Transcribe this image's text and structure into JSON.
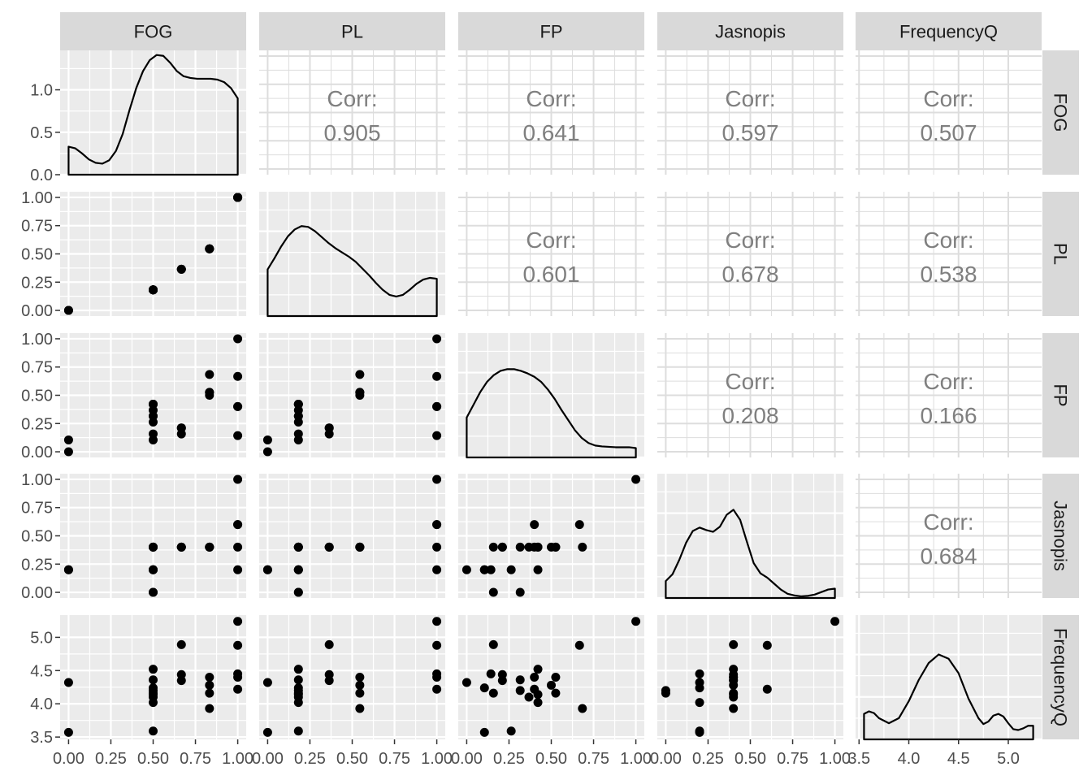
{
  "chart_data": {
    "type": "scatter",
    "title": "",
    "variables": [
      "FOG",
      "PL",
      "FP",
      "Jasnopis",
      "FrequencyQ"
    ],
    "corr_label": "Corr:",
    "correlations": [
      {
        "row": "FOG",
        "col": "PL",
        "value": "0.905"
      },
      {
        "row": "FOG",
        "col": "FP",
        "value": "0.641"
      },
      {
        "row": "FOG",
        "col": "Jasnopis",
        "value": "0.597"
      },
      {
        "row": "FOG",
        "col": "FrequencyQ",
        "value": "0.507"
      },
      {
        "row": "PL",
        "col": "FP",
        "value": "0.601"
      },
      {
        "row": "PL",
        "col": "Jasnopis",
        "value": "0.678"
      },
      {
        "row": "PL",
        "col": "FrequencyQ",
        "value": "0.538"
      },
      {
        "row": "FP",
        "col": "Jasnopis",
        "value": "0.208"
      },
      {
        "row": "FP",
        "col": "FrequencyQ",
        "value": "0.166"
      },
      {
        "row": "Jasnopis",
        "col": "FrequencyQ",
        "value": "0.684"
      }
    ],
    "axes": {
      "FOG": {
        "range": [
          0,
          1
        ],
        "ticks": [
          "0.00",
          "0.25",
          "0.50",
          "0.75",
          "1.00"
        ]
      },
      "PL": {
        "range": [
          0,
          1
        ],
        "ticks": [
          "0.00",
          "0.25",
          "0.50",
          "0.75",
          "1.00"
        ]
      },
      "FP": {
        "range": [
          0,
          1
        ],
        "ticks": [
          "0.00",
          "0.25",
          "0.50",
          "0.75",
          "1.00"
        ]
      },
      "Jasnopis": {
        "range": [
          0,
          1
        ],
        "ticks": [
          "0.00",
          "0.25",
          "0.50",
          "0.75",
          "1.00"
        ]
      },
      "FrequencyQ": {
        "range": [
          3.55,
          5.25
        ],
        "ticks": [
          "3.5",
          "4.0",
          "4.5",
          "5.0"
        ]
      }
    },
    "density_y_ticks": [
      "0.0",
      "0.5",
      "1.0"
    ],
    "density_y_max": 1.45,
    "observations": {
      "FOG": [
        0,
        0,
        0.5,
        0.5,
        0.5,
        0.5,
        0.5,
        0.5,
        0.5,
        0.5,
        0.5,
        0.667,
        0.667,
        0.667,
        0.833,
        0.833,
        0.833,
        0.833,
        1,
        1,
        1,
        1,
        1
      ],
      "PL": [
        0,
        0,
        0.182,
        0.182,
        0.182,
        0.182,
        0.182,
        0.182,
        0.182,
        0.182,
        0.182,
        0.364,
        0.364,
        0.364,
        0.545,
        0.545,
        0.545,
        0.545,
        1,
        1,
        1,
        1,
        1
      ],
      "FP": [
        0,
        0.105,
        0.263,
        0.421,
        0.316,
        0.105,
        0.158,
        0.368,
        0.421,
        0.316,
        0.421,
        0.158,
        0.211,
        0.211,
        0.526,
        0.5,
        0.526,
        0.684,
        1,
        0.667,
        0.143,
        0.4,
        0.4
      ],
      "Jasnopis": [
        0.2,
        0.2,
        0.2,
        0.4,
        0.4,
        0.2,
        0.0,
        0.4,
        0.2,
        0.0,
        0.4,
        0.4,
        0.4,
        0.4,
        0.4,
        0.4,
        0.4,
        0.4,
        1,
        0.6,
        0.2,
        0.6,
        0.4
      ],
      "FrequencyQ": [
        4.32,
        3.57,
        3.59,
        4.52,
        4.36,
        4.24,
        4.16,
        4.1,
        4.02,
        4.2,
        4.14,
        4.89,
        4.44,
        4.35,
        4.4,
        4.28,
        4.16,
        3.93,
        5.24,
        4.88,
        4.45,
        4.22,
        4.4
      ]
    },
    "densities": {
      "FOG": [
        [
          0,
          0.33
        ],
        [
          0.04,
          0.31
        ],
        [
          0.08,
          0.25
        ],
        [
          0.12,
          0.18
        ],
        [
          0.16,
          0.14
        ],
        [
          0.2,
          0.13
        ],
        [
          0.24,
          0.17
        ],
        [
          0.28,
          0.28
        ],
        [
          0.32,
          0.48
        ],
        [
          0.36,
          0.76
        ],
        [
          0.4,
          1.02
        ],
        [
          0.44,
          1.22
        ],
        [
          0.48,
          1.35
        ],
        [
          0.52,
          1.41
        ],
        [
          0.56,
          1.4
        ],
        [
          0.6,
          1.32
        ],
        [
          0.64,
          1.22
        ],
        [
          0.68,
          1.16
        ],
        [
          0.72,
          1.14
        ],
        [
          0.76,
          1.13
        ],
        [
          0.8,
          1.13
        ],
        [
          0.84,
          1.13
        ],
        [
          0.88,
          1.12
        ],
        [
          0.92,
          1.09
        ],
        [
          0.96,
          1.02
        ],
        [
          1,
          0.9
        ]
      ],
      "PL": [
        [
          0,
          0.55
        ],
        [
          0.04,
          0.68
        ],
        [
          0.08,
          0.82
        ],
        [
          0.12,
          0.94
        ],
        [
          0.16,
          1.02
        ],
        [
          0.2,
          1.06
        ],
        [
          0.24,
          1.05
        ],
        [
          0.28,
          1.0
        ],
        [
          0.32,
          0.93
        ],
        [
          0.36,
          0.86
        ],
        [
          0.4,
          0.8
        ],
        [
          0.44,
          0.75
        ],
        [
          0.48,
          0.7
        ],
        [
          0.52,
          0.64
        ],
        [
          0.56,
          0.56
        ],
        [
          0.6,
          0.48
        ],
        [
          0.64,
          0.39
        ],
        [
          0.68,
          0.31
        ],
        [
          0.72,
          0.25
        ],
        [
          0.76,
          0.23
        ],
        [
          0.8,
          0.25
        ],
        [
          0.84,
          0.31
        ],
        [
          0.88,
          0.38
        ],
        [
          0.92,
          0.43
        ],
        [
          0.96,
          0.45
        ],
        [
          1,
          0.44
        ]
      ],
      "FP": [
        [
          0,
          0.47
        ],
        [
          0.04,
          0.62
        ],
        [
          0.08,
          0.77
        ],
        [
          0.12,
          0.89
        ],
        [
          0.16,
          0.97
        ],
        [
          0.2,
          1.02
        ],
        [
          0.24,
          1.04
        ],
        [
          0.28,
          1.04
        ],
        [
          0.32,
          1.02
        ],
        [
          0.36,
          0.99
        ],
        [
          0.4,
          0.95
        ],
        [
          0.44,
          0.89
        ],
        [
          0.48,
          0.8
        ],
        [
          0.52,
          0.69
        ],
        [
          0.56,
          0.56
        ],
        [
          0.6,
          0.44
        ],
        [
          0.64,
          0.32
        ],
        [
          0.68,
          0.23
        ],
        [
          0.72,
          0.17
        ],
        [
          0.76,
          0.14
        ],
        [
          0.8,
          0.13
        ],
        [
          0.84,
          0.125
        ],
        [
          0.88,
          0.12
        ],
        [
          0.92,
          0.12
        ],
        [
          0.96,
          0.12
        ],
        [
          1,
          0.11
        ]
      ],
      "Jasnopis": [
        [
          0,
          0.2
        ],
        [
          0.04,
          0.28
        ],
        [
          0.08,
          0.45
        ],
        [
          0.12,
          0.65
        ],
        [
          0.16,
          0.79
        ],
        [
          0.2,
          0.83
        ],
        [
          0.24,
          0.8
        ],
        [
          0.28,
          0.78
        ],
        [
          0.32,
          0.84
        ],
        [
          0.36,
          0.98
        ],
        [
          0.4,
          1.04
        ],
        [
          0.44,
          0.92
        ],
        [
          0.48,
          0.66
        ],
        [
          0.52,
          0.41
        ],
        [
          0.56,
          0.29
        ],
        [
          0.6,
          0.24
        ],
        [
          0.64,
          0.17
        ],
        [
          0.68,
          0.1
        ],
        [
          0.72,
          0.05
        ],
        [
          0.76,
          0.03
        ],
        [
          0.8,
          0.02
        ],
        [
          0.84,
          0.025
        ],
        [
          0.88,
          0.04
        ],
        [
          0.92,
          0.07
        ],
        [
          0.96,
          0.1
        ],
        [
          1,
          0.11
        ]
      ],
      "FrequencyQ": [
        [
          3.55,
          0.3
        ],
        [
          3.6,
          0.33
        ],
        [
          3.65,
          0.31
        ],
        [
          3.7,
          0.25
        ],
        [
          3.8,
          0.19
        ],
        [
          3.9,
          0.25
        ],
        [
          4.0,
          0.45
        ],
        [
          4.1,
          0.7
        ],
        [
          4.2,
          0.9
        ],
        [
          4.3,
          1.0
        ],
        [
          4.4,
          0.95
        ],
        [
          4.5,
          0.78
        ],
        [
          4.6,
          0.48
        ],
        [
          4.7,
          0.25
        ],
        [
          4.75,
          0.18
        ],
        [
          4.8,
          0.21
        ],
        [
          4.85,
          0.28
        ],
        [
          4.9,
          0.3
        ],
        [
          4.95,
          0.27
        ],
        [
          5.0,
          0.19
        ],
        [
          5.05,
          0.12
        ],
        [
          5.1,
          0.11
        ],
        [
          5.15,
          0.13
        ],
        [
          5.2,
          0.16
        ],
        [
          5.25,
          0.16
        ]
      ]
    },
    "legend": "none",
    "grid": true
  }
}
